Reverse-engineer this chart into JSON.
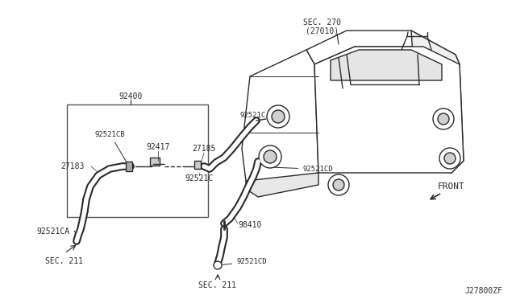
{
  "bg_color": "#ffffff",
  "line_color": "#2a2a2a",
  "line_width": 1.0,
  "diagram_number": "J27800ZF",
  "labels": {
    "sec270_line1": "SEC. 270",
    "sec270_line2": "(27010)",
    "part92400": "92400",
    "part92521CB": "92521CB",
    "part92417": "92417",
    "part27183": "27183",
    "part27185": "27185",
    "part92521C_top": "92521C",
    "part92521C_mid": "92521C",
    "part92521CA": "92521CA",
    "part92521CD_right": "92521CD",
    "part92521CD_bot": "92521CD",
    "part98410": "98410",
    "sec211_left": "SEC. 211",
    "sec211_bot": "SEC. 211",
    "front": "FRONT"
  }
}
